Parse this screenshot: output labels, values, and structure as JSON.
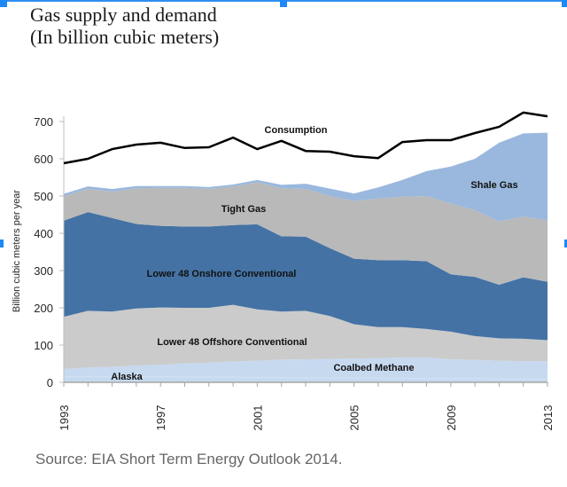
{
  "title_line1": "Gas supply and demand",
  "title_line2": "(In billion cubic meters)",
  "source": "Source: EIA Short Term Energy Outlook 2014.",
  "chart_data": {
    "type": "area",
    "stacked": true,
    "title": "Gas supply and demand (In billion cubic meters)",
    "xlabel": "",
    "ylabel": "Billion cubic meters per year",
    "xlim": [
      1993,
      2013
    ],
    "ylim": [
      0,
      700
    ],
    "x": [
      1993,
      1994,
      1995,
      1996,
      1997,
      1998,
      1999,
      2000,
      2001,
      2002,
      2003,
      2004,
      2005,
      2006,
      2007,
      2008,
      2009,
      2010,
      2011,
      2012,
      2013
    ],
    "x_tick_labels": [
      "1993",
      "1997",
      "2001",
      "2005",
      "2009",
      "2013"
    ],
    "y_tick_labels": [
      "0",
      "100",
      "200",
      "300",
      "400",
      "500",
      "600",
      "700"
    ],
    "y_ticks": [
      0,
      100,
      200,
      300,
      400,
      500,
      600,
      700
    ],
    "grid": false,
    "series": [
      {
        "name": "Alaska",
        "color": "#c6d9ef",
        "values": [
          15,
          15,
          15,
          15,
          15,
          14,
          14,
          14,
          13,
          13,
          12,
          12,
          12,
          12,
          11,
          10,
          10,
          10,
          9,
          9,
          9
        ]
      },
      {
        "name": "Coalbed Methane",
        "color": "#c6d9ef",
        "values": [
          21,
          25,
          27,
          30,
          32,
          37,
          39,
          42,
          45,
          48,
          50,
          51,
          52,
          53,
          56,
          57,
          52,
          50,
          49,
          48,
          48
        ]
      },
      {
        "name": "Lower 48 Offshore Conventional",
        "color": "#cbcbcb",
        "values": [
          140,
          152,
          148,
          153,
          154,
          149,
          147,
          152,
          138,
          129,
          130,
          115,
          92,
          83,
          81,
          76,
          74,
          64,
          60,
          60,
          56
        ]
      },
      {
        "name": "Lower 48 Onshore Conventional",
        "color": "#4472a4",
        "values": [
          258,
          265,
          251,
          227,
          219,
          218,
          218,
          214,
          228,
          202,
          199,
          182,
          176,
          180,
          180,
          182,
          154,
          159,
          144,
          165,
          157
        ]
      },
      {
        "name": "Tight Gas",
        "color": "#b9b9b9",
        "values": [
          66,
          62,
          71,
          96,
          102,
          104,
          101,
          104,
          113,
          129,
          128,
          140,
          155,
          165,
          170,
          175,
          190,
          179,
          170,
          163,
          165
        ]
      },
      {
        "name": "Shale Gas",
        "color": "#9ab8dd",
        "values": [
          6,
          7,
          7,
          6,
          5,
          5,
          5,
          5,
          6,
          9,
          14,
          20,
          20,
          30,
          45,
          67,
          99,
          138,
          211,
          223,
          235
        ]
      }
    ],
    "lines": [
      {
        "name": "Consumption",
        "color": "#000000",
        "values": [
          588,
          600,
          626,
          638,
          643,
          629,
          631,
          657,
          626,
          648,
          621,
          619,
          607,
          602,
          645,
          650,
          650,
          669,
          686,
          724,
          714
        ]
      }
    ],
    "annotations": [
      {
        "text": "Consumption",
        "series": "Consumption"
      },
      {
        "text": "Shale Gas",
        "series": "Shale Gas"
      },
      {
        "text": "Tight Gas",
        "series": "Tight Gas"
      },
      {
        "text": "Lower 48 Onshore Conventional",
        "series": "Lower 48 Onshore Conventional"
      },
      {
        "text": "Lower 48 Offshore Conventional",
        "series": "Lower 48 Offshore Conventional"
      },
      {
        "text": "Coalbed Methane",
        "series": "Coalbed Methane"
      },
      {
        "text": "Alaska",
        "series": "Alaska"
      }
    ]
  }
}
